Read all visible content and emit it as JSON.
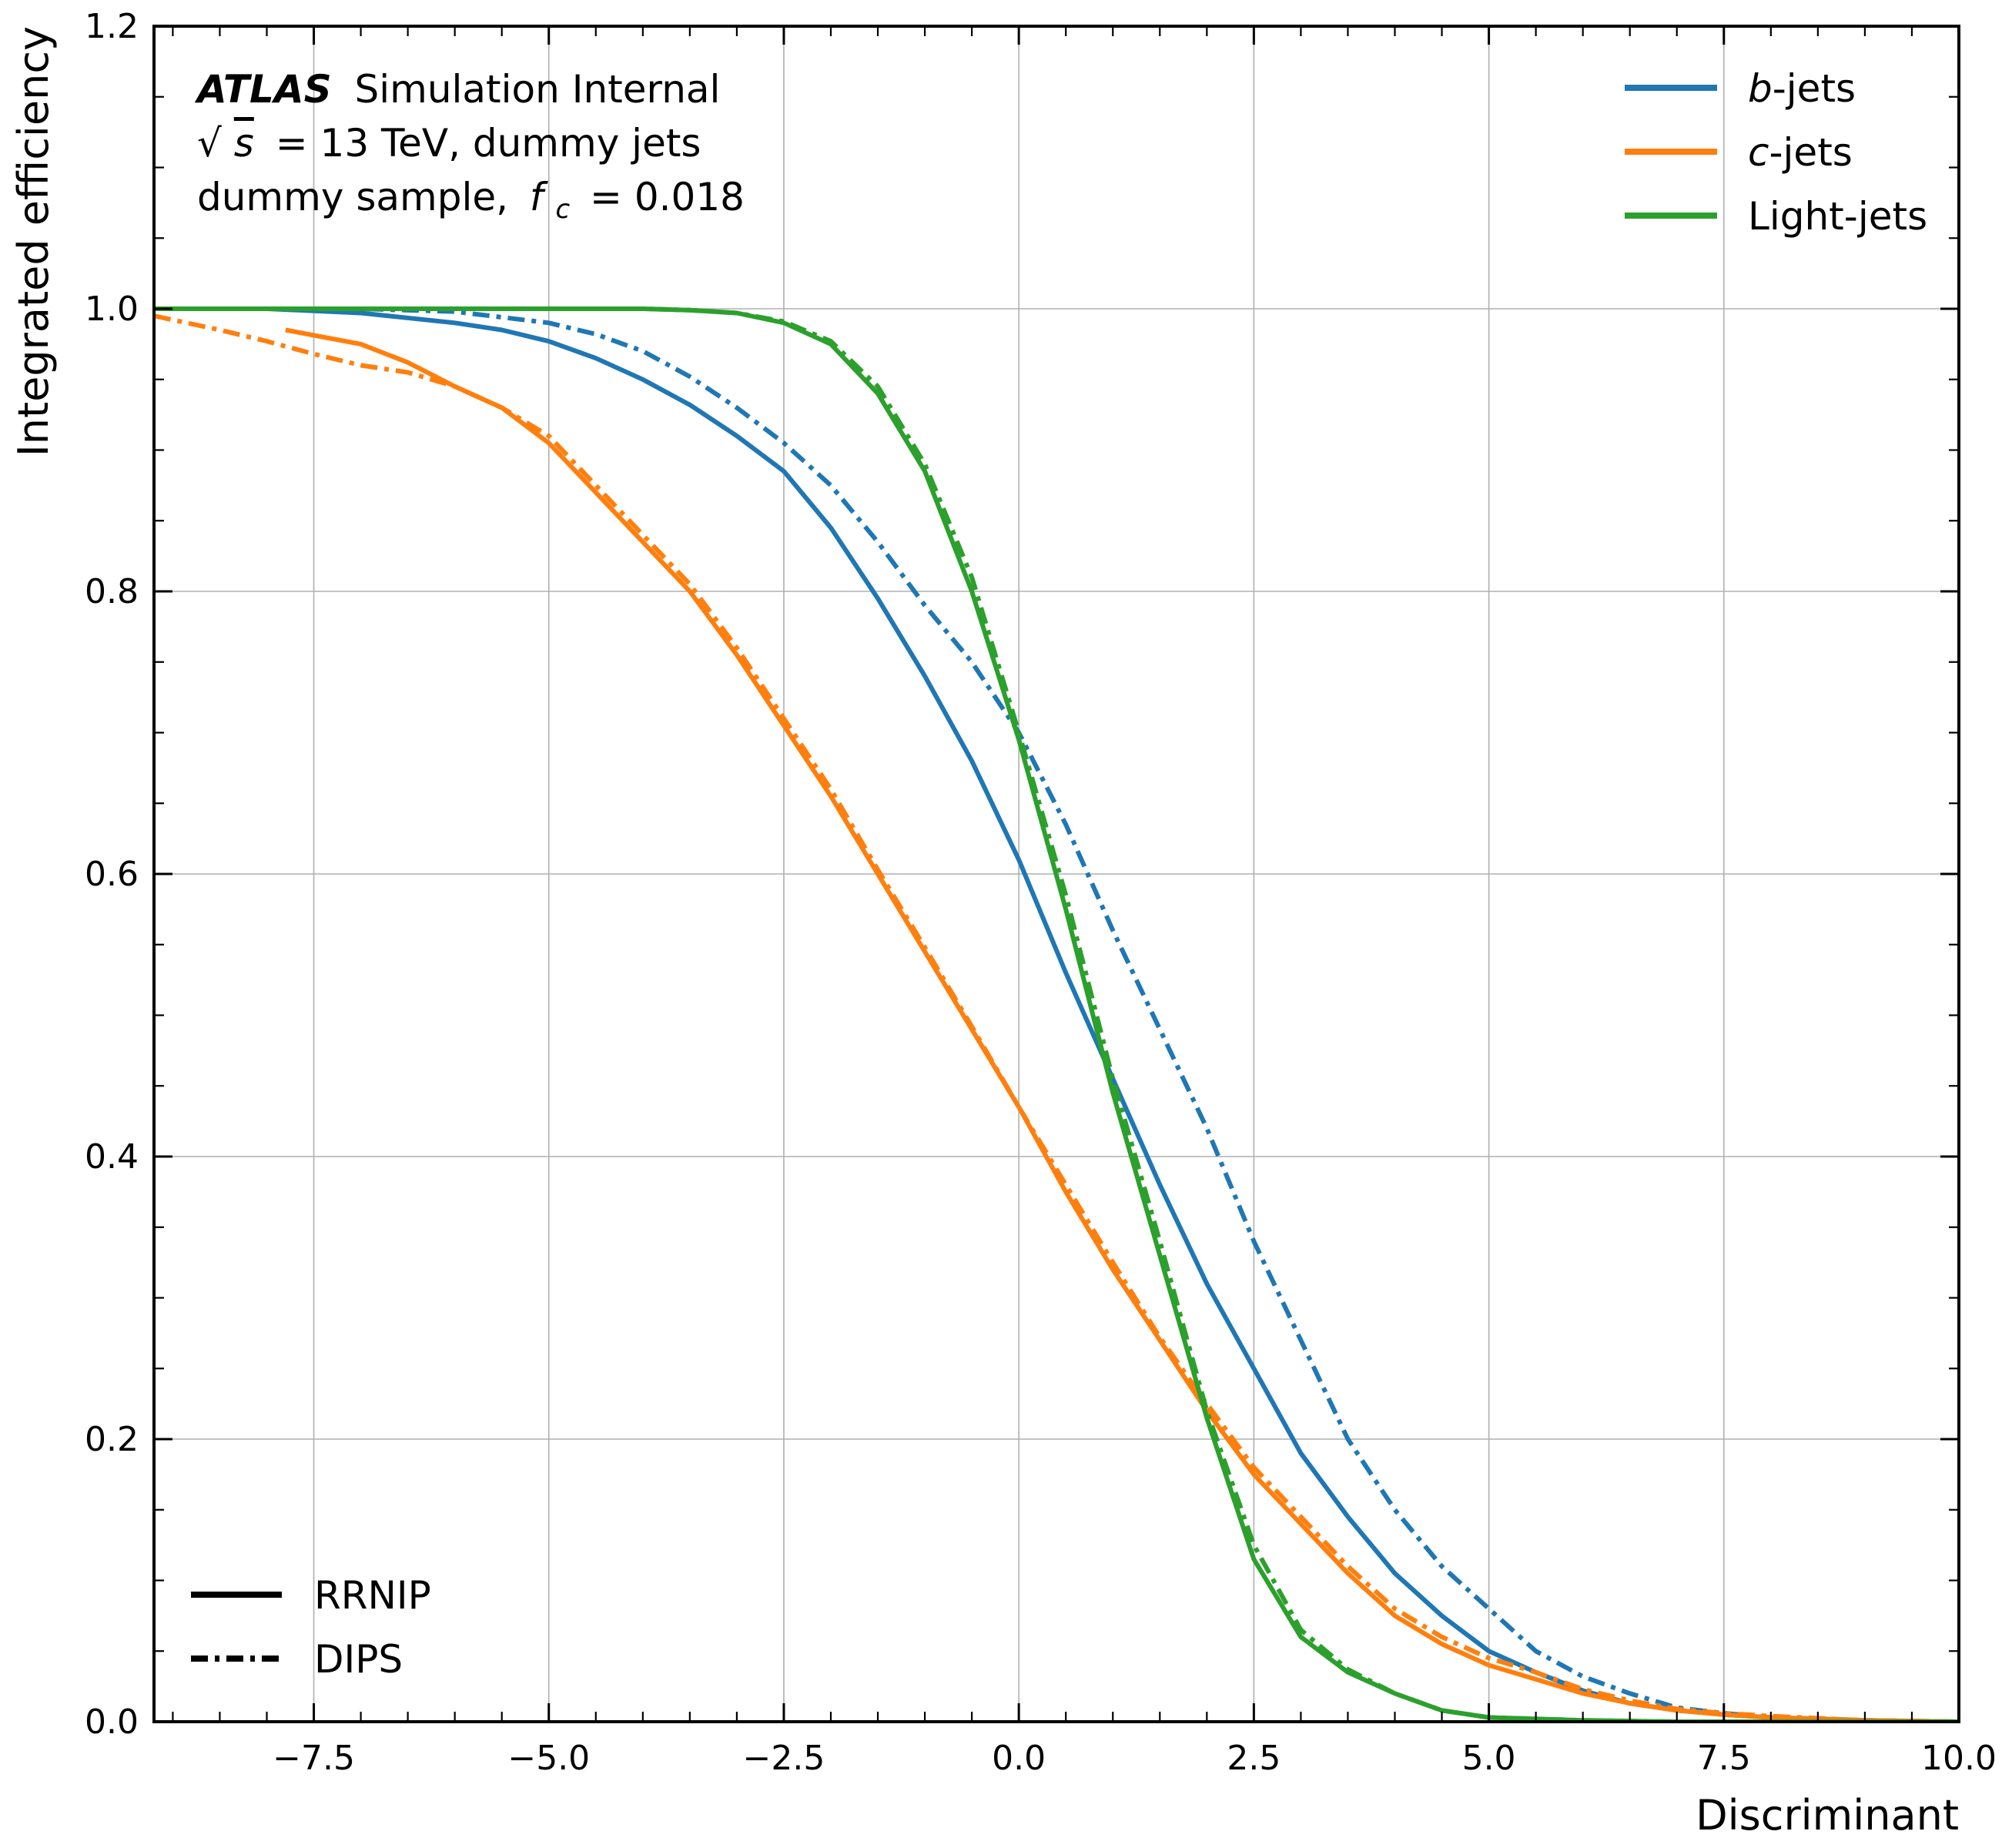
{
  "chart_data": {
    "type": "line",
    "title": "",
    "xlabel": "Discriminant",
    "ylabel": "Integrated efficiency",
    "xlim": [
      -9.2,
      10.0
    ],
    "ylim": [
      0.0,
      1.2
    ],
    "x_ticks": [
      -7.5,
      -5.0,
      -2.5,
      0.0,
      2.5,
      5.0,
      7.5,
      10.0
    ],
    "x_tick_labels": [
      "−7.5",
      "−5.0",
      "−2.5",
      "0.0",
      "2.5",
      "5.0",
      "7.5",
      "10.0"
    ],
    "y_ticks": [
      0.0,
      0.2,
      0.4,
      0.6,
      0.8,
      1.0,
      1.2
    ],
    "y_tick_labels": [
      "0.0",
      "0.2",
      "0.4",
      "0.6",
      "0.8",
      "1.0",
      "1.2"
    ],
    "grid": true,
    "annotation": {
      "atlas_label": "ATLAS",
      "atlas_suffix": "Simulation Internal",
      "sqrt_symbol": "√",
      "energy_var": "s",
      "energy_rest": "= 13 TeV, dummy jets",
      "sample_prefix": "dummy sample,",
      "fc_symbol": "f",
      "fc_sub": "c",
      "fc_value": "= 0.018"
    },
    "legend_flavour": {
      "placement": "top-right",
      "entries": [
        {
          "italic": "b",
          "text": "-jets",
          "color": "#1f77b4"
        },
        {
          "italic": "c",
          "text": "-jets",
          "color": "#ff7f0e"
        },
        {
          "italic": "",
          "text": "Light-jets",
          "color": "#2ca02c"
        }
      ]
    },
    "legend_tagger": {
      "placement": "bottom-left",
      "entries": [
        {
          "text": "RRNIP",
          "style": "solid"
        },
        {
          "text": "DIPS",
          "style": "dashdot"
        }
      ]
    },
    "series": [
      {
        "name": "b-jets RRNIP",
        "color": "#1f77b4",
        "style": "solid",
        "x": [
          -9.2,
          -8.0,
          -7.0,
          -6.0,
          -5.5,
          -5.0,
          -4.5,
          -4.0,
          -3.5,
          -3.0,
          -2.5,
          -2.0,
          -1.5,
          -1.0,
          -0.5,
          0.0,
          0.5,
          1.0,
          1.5,
          2.0,
          2.5,
          3.0,
          3.5,
          4.0,
          4.5,
          5.0,
          5.5,
          6.0,
          6.5,
          7.0,
          7.5,
          8.0,
          8.5,
          9.0,
          10.0
        ],
        "y": [
          1.0,
          1.0,
          0.997,
          0.99,
          0.985,
          0.977,
          0.965,
          0.95,
          0.932,
          0.91,
          0.885,
          0.845,
          0.795,
          0.74,
          0.68,
          0.61,
          0.53,
          0.455,
          0.38,
          0.31,
          0.25,
          0.19,
          0.145,
          0.105,
          0.075,
          0.05,
          0.035,
          0.022,
          0.013,
          0.008,
          0.005,
          0.003,
          0.002,
          0.001,
          0.0
        ]
      },
      {
        "name": "b-jets DIPS",
        "color": "#1f77b4",
        "style": "dashdot",
        "x": [
          -9.2,
          -8.0,
          -7.0,
          -6.0,
          -5.0,
          -4.5,
          -4.0,
          -3.5,
          -3.0,
          -2.5,
          -2.0,
          -1.5,
          -1.0,
          -0.5,
          0.0,
          0.5,
          1.0,
          1.5,
          2.0,
          2.5,
          3.0,
          3.5,
          4.0,
          4.5,
          5.0,
          5.5,
          6.0,
          6.5,
          7.0,
          7.5,
          8.0,
          9.0,
          10.0
        ],
        "y": [
          1.0,
          1.0,
          1.0,
          0.998,
          0.99,
          0.982,
          0.97,
          0.952,
          0.93,
          0.905,
          0.875,
          0.835,
          0.79,
          0.75,
          0.7,
          0.635,
          0.56,
          0.49,
          0.42,
          0.34,
          0.27,
          0.2,
          0.15,
          0.11,
          0.08,
          0.05,
          0.032,
          0.02,
          0.01,
          0.006,
          0.003,
          0.001,
          0.0
        ]
      },
      {
        "name": "c-jets RRNIP",
        "color": "#ff7f0e",
        "style": "solid",
        "x": [
          -7.8,
          -7.0,
          -6.5,
          -6.0,
          -5.5,
          -5.0,
          -4.5,
          -4.0,
          -3.5,
          -3.0,
          -2.5,
          -2.0,
          -1.5,
          -1.0,
          -0.5,
          0.0,
          0.5,
          1.0,
          1.5,
          2.0,
          2.5,
          3.0,
          3.5,
          4.0,
          4.5,
          5.0,
          5.5,
          6.0,
          6.5,
          7.0,
          7.5,
          8.0,
          9.0,
          10.0
        ],
        "y": [
          0.985,
          0.975,
          0.962,
          0.945,
          0.93,
          0.905,
          0.87,
          0.835,
          0.8,
          0.755,
          0.705,
          0.655,
          0.6,
          0.545,
          0.49,
          0.435,
          0.375,
          0.32,
          0.27,
          0.22,
          0.175,
          0.14,
          0.105,
          0.075,
          0.055,
          0.04,
          0.03,
          0.02,
          0.013,
          0.008,
          0.005,
          0.003,
          0.001,
          0.0
        ]
      },
      {
        "name": "c-jets DIPS",
        "color": "#ff7f0e",
        "style": "dashdot",
        "x": [
          -9.2,
          -8.5,
          -8.0,
          -7.5,
          -7.0,
          -6.5,
          -6.0,
          -5.5,
          -5.0,
          -4.5,
          -4.0,
          -3.5,
          -3.0,
          -2.5,
          -2.0,
          -1.5,
          -1.0,
          -0.5,
          0.0,
          0.5,
          1.0,
          1.5,
          2.0,
          2.5,
          3.0,
          3.5,
          4.0,
          4.5,
          5.0,
          5.5,
          6.0,
          6.5,
          7.0,
          7.5,
          8.0,
          9.0,
          10.0
        ],
        "y": [
          0.995,
          0.985,
          0.977,
          0.968,
          0.96,
          0.955,
          0.945,
          0.93,
          0.91,
          0.875,
          0.84,
          0.805,
          0.76,
          0.71,
          0.66,
          0.603,
          0.548,
          0.492,
          0.435,
          0.38,
          0.325,
          0.272,
          0.225,
          0.18,
          0.145,
          0.11,
          0.08,
          0.06,
          0.045,
          0.035,
          0.023,
          0.015,
          0.009,
          0.006,
          0.004,
          0.001,
          0.0
        ]
      },
      {
        "name": "Light-jets RRNIP",
        "color": "#2ca02c",
        "style": "solid",
        "x": [
          -9.2,
          -7.0,
          -5.0,
          -4.0,
          -3.5,
          -3.0,
          -2.5,
          -2.0,
          -1.5,
          -1.0,
          -0.5,
          0.0,
          0.5,
          1.0,
          1.5,
          2.0,
          2.5,
          3.0,
          3.5,
          4.0,
          4.5,
          5.0,
          6.0,
          7.0,
          8.0,
          10.0
        ],
        "y": [
          1.0,
          1.0,
          1.0,
          1.0,
          0.999,
          0.997,
          0.99,
          0.975,
          0.94,
          0.885,
          0.8,
          0.695,
          0.575,
          0.445,
          0.33,
          0.215,
          0.115,
          0.06,
          0.035,
          0.02,
          0.008,
          0.003,
          0.001,
          0.0,
          0.0,
          0.0
        ]
      },
      {
        "name": "Light-jets DIPS",
        "color": "#2ca02c",
        "style": "dashdot",
        "x": [
          -9.2,
          -7.0,
          -5.0,
          -4.0,
          -3.5,
          -3.0,
          -2.5,
          -2.0,
          -1.5,
          -1.0,
          -0.5,
          0.0,
          0.5,
          1.0,
          1.5,
          2.0,
          2.5,
          3.0,
          3.5,
          4.0,
          4.5,
          5.0,
          6.0,
          7.0,
          8.0,
          10.0
        ],
        "y": [
          1.0,
          1.0,
          1.0,
          1.0,
          0.999,
          0.997,
          0.991,
          0.977,
          0.945,
          0.89,
          0.81,
          0.7,
          0.585,
          0.455,
          0.34,
          0.22,
          0.125,
          0.065,
          0.037,
          0.02,
          0.008,
          0.003,
          0.001,
          0.0,
          0.0,
          0.0
        ]
      }
    ]
  }
}
